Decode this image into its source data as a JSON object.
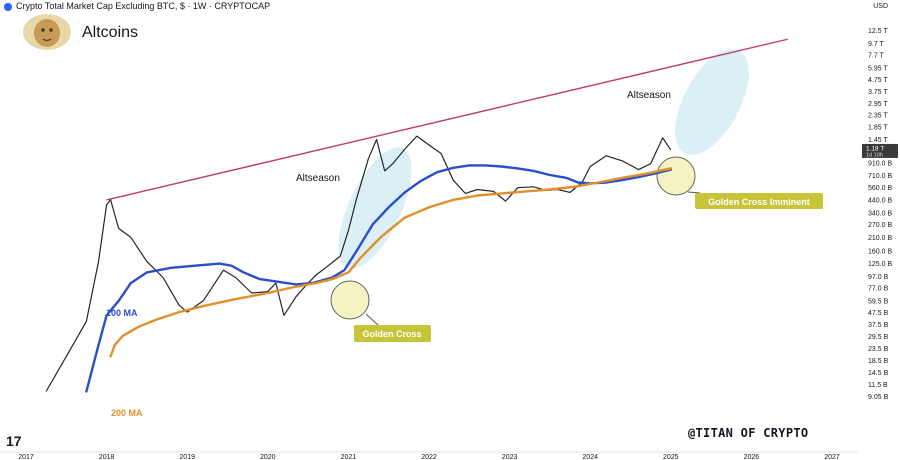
{
  "header": {
    "symbol_line": "Crypto Total Market Cap Excluding BTC, $ · 1W · CRYPTOCAP",
    "currency": "USD"
  },
  "brand": {
    "title": "Altcoins",
    "avatar_icon": "lion-avatar-icon"
  },
  "watermark": "@TITAN OF CRYPTO",
  "tv_logo": "17",
  "chart_data": {
    "type": "line",
    "scale": "log",
    "x_ticks": [
      "2017",
      "2018",
      "2019",
      "2020",
      "2021",
      "2022",
      "2023",
      "2024",
      "2025",
      "2026",
      "2027"
    ],
    "y_ticks": [
      "12.5 T",
      "9.7 T",
      "7.7 T",
      "5.95 T",
      "4.75 T",
      "3.75 T",
      "2.95 T",
      "2.35 T",
      "1.85 T",
      "1.45 T",
      "910.0 B",
      "710.0 B",
      "560.0 B",
      "440.0 B",
      "340.0 B",
      "270.0 B",
      "210.0 B",
      "160.0 B",
      "125.0 B",
      "97.0 B",
      "77.0 B",
      "59.5 B",
      "47.5 B",
      "37.5 B",
      "29.5 B",
      "23.5 B",
      "18.5 B",
      "14.5 B",
      "11.5 B",
      "9.05 B"
    ],
    "ylim_billions": [
      8.5,
      14500
    ],
    "price_label": {
      "value": "1.18 T",
      "sub": "1d 10h"
    },
    "price_series": {
      "name": "",
      "points": [
        [
          2017.25,
          10
        ],
        [
          2017.5,
          20
        ],
        [
          2017.75,
          40
        ],
        [
          2017.9,
          130
        ],
        [
          2018.0,
          400
        ],
        [
          2018.05,
          440
        ],
        [
          2018.15,
          250
        ],
        [
          2018.3,
          210
        ],
        [
          2018.5,
          130
        ],
        [
          2018.7,
          95
        ],
        [
          2018.9,
          55
        ],
        [
          2019.0,
          48
        ],
        [
          2019.2,
          60
        ],
        [
          2019.45,
          110
        ],
        [
          2019.6,
          95
        ],
        [
          2019.8,
          70
        ],
        [
          2020.0,
          72
        ],
        [
          2020.1,
          85
        ],
        [
          2020.2,
          45
        ],
        [
          2020.35,
          65
        ],
        [
          2020.5,
          85
        ],
        [
          2020.6,
          100
        ],
        [
          2020.75,
          120
        ],
        [
          2020.9,
          145
        ],
        [
          2021.0,
          240
        ],
        [
          2021.1,
          450
        ],
        [
          2021.25,
          1000
        ],
        [
          2021.35,
          1450
        ],
        [
          2021.45,
          780
        ],
        [
          2021.55,
          900
        ],
        [
          2021.7,
          1200
        ],
        [
          2021.85,
          1550
        ],
        [
          2022.0,
          1300
        ],
        [
          2022.15,
          1100
        ],
        [
          2022.3,
          650
        ],
        [
          2022.45,
          500
        ],
        [
          2022.6,
          540
        ],
        [
          2022.8,
          520
        ],
        [
          2022.95,
          430
        ],
        [
          2023.1,
          560
        ],
        [
          2023.3,
          570
        ],
        [
          2023.45,
          530
        ],
        [
          2023.6,
          540
        ],
        [
          2023.75,
          510
        ],
        [
          2023.9,
          620
        ],
        [
          2024.0,
          850
        ],
        [
          2024.2,
          1050
        ],
        [
          2024.4,
          950
        ],
        [
          2024.6,
          800
        ],
        [
          2024.75,
          900
        ],
        [
          2024.9,
          1500
        ],
        [
          2025.0,
          1180
        ]
      ]
    },
    "ma_series": [
      {
        "name": "100 MA",
        "color": "#2b4fc9",
        "points": [
          [
            2017.75,
            10
          ],
          [
            2017.9,
            25
          ],
          [
            2018.0,
            45
          ],
          [
            2018.15,
            60
          ],
          [
            2018.3,
            85
          ],
          [
            2018.5,
            105
          ],
          [
            2018.8,
            115
          ],
          [
            2019.1,
            120
          ],
          [
            2019.4,
            125
          ],
          [
            2019.55,
            120
          ],
          [
            2019.7,
            105
          ],
          [
            2019.9,
            92
          ],
          [
            2020.1,
            88
          ],
          [
            2020.35,
            83
          ],
          [
            2020.55,
            85
          ],
          [
            2020.8,
            95
          ],
          [
            2020.95,
            110
          ],
          [
            2021.1,
            160
          ],
          [
            2021.3,
            270
          ],
          [
            2021.5,
            380
          ],
          [
            2021.7,
            510
          ],
          [
            2021.9,
            640
          ],
          [
            2022.1,
            760
          ],
          [
            2022.3,
            830
          ],
          [
            2022.5,
            870
          ],
          [
            2022.7,
            870
          ],
          [
            2022.9,
            850
          ],
          [
            2023.1,
            820
          ],
          [
            2023.3,
            780
          ],
          [
            2023.5,
            720
          ],
          [
            2023.7,
            680
          ],
          [
            2023.85,
            620
          ],
          [
            2024.0,
            610
          ],
          [
            2024.2,
            620
          ],
          [
            2024.4,
            650
          ],
          [
            2024.6,
            690
          ],
          [
            2024.8,
            740
          ],
          [
            2025.0,
            800
          ]
        ]
      },
      {
        "name": "200 MA",
        "color": "#e0902a",
        "points": [
          [
            2018.05,
            20
          ],
          [
            2018.1,
            25
          ],
          [
            2018.2,
            30
          ],
          [
            2018.4,
            36
          ],
          [
            2018.6,
            41
          ],
          [
            2018.9,
            48
          ],
          [
            2019.2,
            54
          ],
          [
            2019.6,
            62
          ],
          [
            2020.0,
            70
          ],
          [
            2020.3,
            78
          ],
          [
            2020.6,
            85
          ],
          [
            2020.8,
            92
          ],
          [
            2021.0,
            105
          ],
          [
            2021.15,
            140
          ],
          [
            2021.4,
            210
          ],
          [
            2021.7,
            310
          ],
          [
            2022.0,
            380
          ],
          [
            2022.3,
            440
          ],
          [
            2022.6,
            480
          ],
          [
            2022.9,
            500
          ],
          [
            2023.2,
            520
          ],
          [
            2023.5,
            540
          ],
          [
            2023.8,
            570
          ],
          [
            2024.1,
            620
          ],
          [
            2024.4,
            680
          ],
          [
            2024.7,
            740
          ],
          [
            2025.0,
            820
          ]
        ]
      }
    ],
    "trendline": {
      "color": "#c13a6c",
      "from": [
        2018.0,
        440
      ],
      "to": [
        2026.45,
        10500
      ]
    },
    "annotations": {
      "altseason_1": {
        "text": "Altseason",
        "at": [
          2020.65,
          800
        ]
      },
      "altseason_2": {
        "text": "Altseason",
        "at": [
          2024.55,
          2750
        ]
      },
      "golden_cross": {
        "text": "Golden Cross",
        "at": [
          2021.0,
          120
        ]
      },
      "golden_cross_imminent": {
        "text": "Golden Cross Imminent",
        "at": [
          2025.05,
          780
        ]
      },
      "ma100_label": {
        "text": "100 MA",
        "at": [
          2018.0,
          85
        ]
      },
      "ma200_label": {
        "text": "200 MA",
        "at": [
          2018.1,
          17
        ]
      }
    }
  }
}
